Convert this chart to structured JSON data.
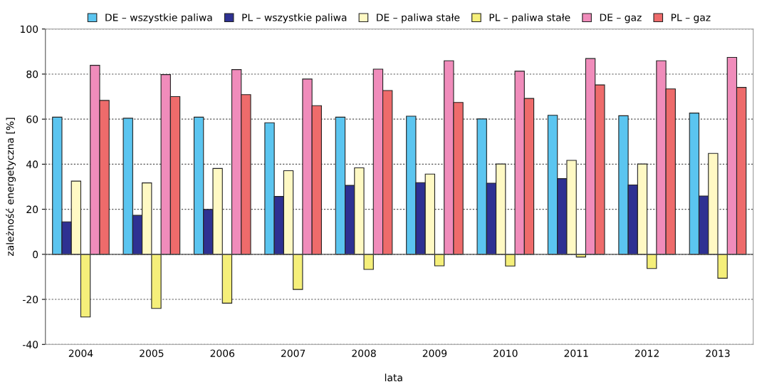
{
  "chart_data": {
    "type": "bar",
    "xlabel": "lata",
    "ylabel": "zależność energetyczna [%]",
    "categories": [
      "2004",
      "2005",
      "2006",
      "2007",
      "2008",
      "2009",
      "2010",
      "2011",
      "2012",
      "2013"
    ],
    "series": [
      {
        "name": "DE – wszystkie paliwa",
        "color": "#5bc5f0",
        "values": [
          60.9,
          60.4,
          60.9,
          58.4,
          60.9,
          61.3,
          60.1,
          61.7,
          61.5,
          62.7
        ]
      },
      {
        "name": "PL – wszystkie paliwa",
        "color": "#2e3192",
        "values": [
          14.4,
          17.3,
          19.9,
          25.7,
          30.6,
          31.8,
          31.6,
          33.6,
          30.8,
          25.9
        ]
      },
      {
        "name": "DE – paliwa stałe",
        "color": "#fff9c4",
        "values": [
          32.5,
          31.7,
          38.1,
          37.1,
          38.4,
          35.6,
          40.1,
          41.7,
          40.1,
          44.8
        ]
      },
      {
        "name": "PL – paliwa stałe",
        "color": "#f5ef7a",
        "values": [
          -27.8,
          -24.0,
          -21.7,
          -15.6,
          -6.7,
          -5.1,
          -5.2,
          -1.2,
          -6.3,
          -10.6
        ]
      },
      {
        "name": "DE – gaz",
        "color": "#f08cbb",
        "values": [
          83.9,
          79.8,
          82.0,
          77.8,
          82.2,
          85.9,
          81.3,
          86.9,
          85.9,
          87.4
        ]
      },
      {
        "name": "PL – gaz",
        "color": "#ee6b6b",
        "values": [
          68.3,
          70.0,
          70.9,
          66.0,
          72.7,
          67.4,
          69.2,
          75.2,
          73.4,
          74.1
        ]
      }
    ],
    "ylim": [
      -40,
      100
    ],
    "yticks": [
      -40,
      -20,
      0,
      20,
      40,
      60,
      80,
      100
    ],
    "grid": "y",
    "legend": "top"
  }
}
